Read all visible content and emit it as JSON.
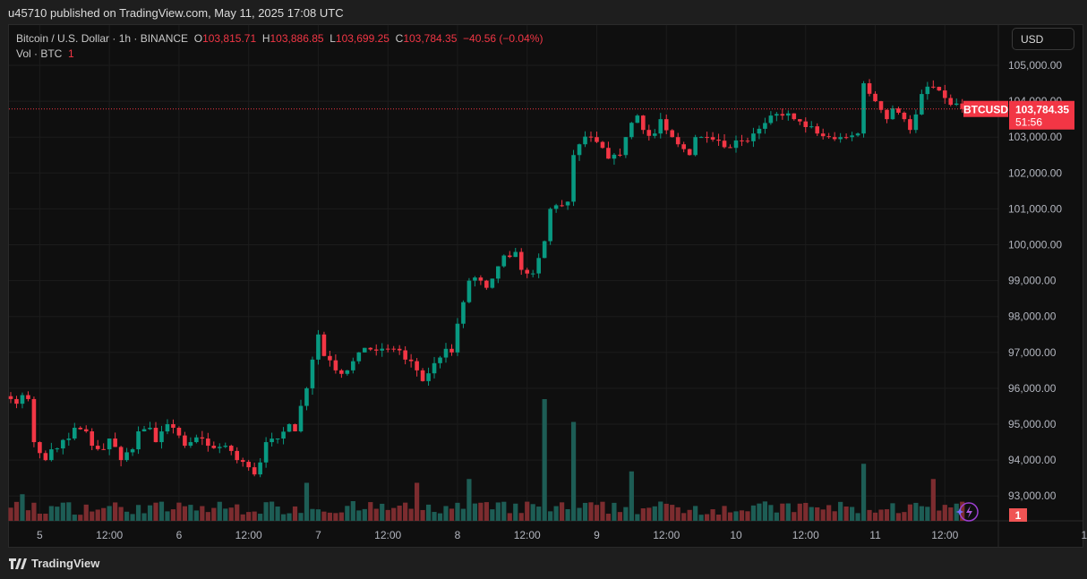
{
  "published": "u45710 published on TradingView.com, May 11, 2025 17:08 UTC",
  "legend": {
    "symbol": "Bitcoin / U.S. Dollar · 1h · BINANCE",
    "o_label": "O",
    "o": "103,815.71",
    "h_label": "H",
    "h": "103,886.85",
    "l_label": "L",
    "l": "103,699.25",
    "c_label": "C",
    "c": "103,784.35",
    "change": "−40.56 (−0.04%)",
    "vol_label": "Vol · BTC",
    "vol": "1"
  },
  "currency_button": "USD",
  "footer_brand": "TradingView",
  "colors": {
    "up": "#089981",
    "down": "#f23645",
    "vol_up": "#1d5d55",
    "vol_down": "#7c2c2f"
  },
  "chart_data": {
    "type": "candlestick",
    "interval": "1h",
    "ylim": [
      92500,
      105700
    ],
    "y_ticks": [
      "105,000.00",
      "104,000.00",
      "103,000.00",
      "102,000.00",
      "101,000.00",
      "100,000.00",
      "99,000.00",
      "98,000.00",
      "97,000.00",
      "96,000.00",
      "95,000.00",
      "94,000.00",
      "93,000.00"
    ],
    "y_tick_values": [
      105000,
      104000,
      103000,
      102000,
      101000,
      100000,
      99000,
      98000,
      97000,
      96000,
      95000,
      94000,
      93000
    ],
    "x_ticks": [
      {
        "h": 5,
        "label": "5"
      },
      {
        "h": 17,
        "label": "12:00"
      },
      {
        "h": 29,
        "label": "6"
      },
      {
        "h": 41,
        "label": "12:00"
      },
      {
        "h": 53,
        "label": "7"
      },
      {
        "h": 65,
        "label": "12:00"
      },
      {
        "h": 77,
        "label": "8"
      },
      {
        "h": 89,
        "label": "12:00"
      },
      {
        "h": 101,
        "label": "9"
      },
      {
        "h": 113,
        "label": "12:00"
      },
      {
        "h": 125,
        "label": "10"
      },
      {
        "h": 137,
        "label": "12:00"
      },
      {
        "h": 149,
        "label": "11"
      },
      {
        "h": 161,
        "label": "12:00"
      },
      {
        "h": 185,
        "label": "1"
      }
    ],
    "close_path": [
      [
        0,
        95700
      ],
      [
        3,
        95700
      ],
      [
        4,
        94500
      ],
      [
        6,
        94000
      ],
      [
        7,
        94300
      ],
      [
        10,
        94600
      ],
      [
        11,
        94900
      ],
      [
        13,
        94800
      ],
      [
        14,
        94400
      ],
      [
        16,
        94300
      ],
      [
        17,
        94600
      ],
      [
        19,
        94000
      ],
      [
        21,
        94300
      ],
      [
        22,
        94800
      ],
      [
        24,
        94900
      ],
      [
        25,
        94500
      ],
      [
        27,
        95000
      ],
      [
        28,
        94900
      ],
      [
        30,
        94400
      ],
      [
        31,
        94500
      ],
      [
        33,
        94600
      ],
      [
        34,
        94400
      ],
      [
        37,
        94400
      ],
      [
        39,
        94000
      ],
      [
        41,
        93800
      ],
      [
        42,
        93600
      ],
      [
        44,
        94500
      ],
      [
        46,
        94600
      ],
      [
        48,
        95000
      ],
      [
        49,
        94800
      ],
      [
        51,
        96000
      ],
      [
        52,
        96800
      ],
      [
        53,
        97500
      ],
      [
        54,
        96900
      ],
      [
        56,
        96500
      ],
      [
        58,
        96500
      ],
      [
        60,
        97000
      ],
      [
        63,
        97050
      ],
      [
        66,
        97100
      ],
      [
        68,
        96800
      ],
      [
        70,
        96500
      ],
      [
        71,
        96200
      ],
      [
        73,
        96700
      ],
      [
        75,
        97100
      ],
      [
        76,
        97000
      ],
      [
        77,
        97800
      ],
      [
        78,
        98400
      ],
      [
        79,
        99000
      ],
      [
        81,
        99000
      ],
      [
        82,
        98800
      ],
      [
        84,
        99400
      ],
      [
        85,
        99700
      ],
      [
        87,
        99800
      ],
      [
        88,
        99300
      ],
      [
        90,
        99200
      ],
      [
        92,
        100100
      ],
      [
        93,
        101000
      ],
      [
        94,
        101100
      ],
      [
        96,
        101200
      ],
      [
        97,
        102500
      ],
      [
        98,
        102800
      ],
      [
        100,
        103000
      ],
      [
        102,
        102700
      ],
      [
        103,
        102400
      ],
      [
        105,
        102500
      ],
      [
        106,
        103000
      ],
      [
        108,
        103600
      ],
      [
        109,
        103200
      ],
      [
        111,
        103100
      ],
      [
        112,
        103500
      ],
      [
        114,
        103000
      ],
      [
        115,
        102800
      ],
      [
        117,
        102500
      ],
      [
        118,
        103000
      ],
      [
        120,
        103000
      ],
      [
        122,
        102900
      ],
      [
        124,
        102700
      ],
      [
        126,
        102900
      ],
      [
        128,
        103100
      ],
      [
        131,
        103600
      ],
      [
        133,
        103600
      ],
      [
        135,
        103500
      ],
      [
        138,
        103300
      ],
      [
        139,
        103100
      ],
      [
        141,
        103000
      ],
      [
        143,
        103000
      ],
      [
        146,
        103100
      ],
      [
        147,
        104500
      ],
      [
        149,
        104000
      ],
      [
        151,
        103500
      ],
      [
        152,
        103800
      ],
      [
        154,
        103500
      ],
      [
        155,
        103200
      ],
      [
        157,
        104200
      ],
      [
        159,
        104400
      ],
      [
        160,
        104300
      ],
      [
        162,
        103900
      ],
      [
        164,
        103784.35
      ]
    ],
    "last_price": "103,784.35",
    "last_price_value": 103784.35,
    "last_symbol": "BTCUSD",
    "countdown": "51:56",
    "volume_label": "1",
    "volume_spikes": [
      [
        2,
        35
      ],
      [
        51,
        50
      ],
      [
        70,
        50
      ],
      [
        79,
        55
      ],
      [
        92,
        160
      ],
      [
        97,
        130
      ],
      [
        107,
        65
      ],
      [
        147,
        75
      ],
      [
        159,
        55
      ]
    ]
  }
}
